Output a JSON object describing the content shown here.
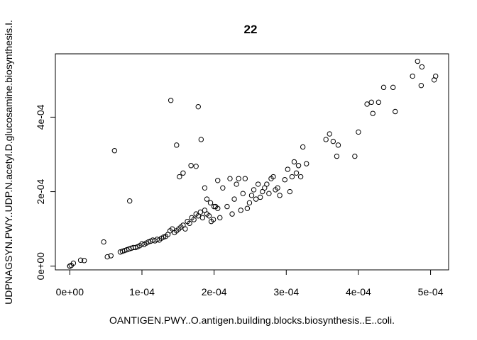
{
  "chart_data": {
    "type": "scatter",
    "title": "22",
    "xlabel": "OANTIGEN.PWY..O.antigen.building.blocks.biosynthesis..E..coli.",
    "ylabel": "UDPNAGSYN.PWY..UDP.N.acetyl.D.glucosamine.biosynthesis.I.",
    "xlim": [
      -2e-05,
      0.000525
    ],
    "ylim": [
      -1e-05,
      0.00057
    ],
    "grid": false,
    "legend": "none",
    "x_ticks": [
      {
        "value": 0,
        "label": "0e+00"
      },
      {
        "value": 0.0001,
        "label": "1e-04"
      },
      {
        "value": 0.0002,
        "label": "2e-04"
      },
      {
        "value": 0.0003,
        "label": "3e-04"
      },
      {
        "value": 0.0004,
        "label": "4e-04"
      },
      {
        "value": 0.0005,
        "label": "5e-04"
      }
    ],
    "y_ticks": [
      {
        "value": 0,
        "label": "0e+00"
      },
      {
        "value": 0.0002,
        "label": "2e-04"
      },
      {
        "value": 0.0004,
        "label": "4e-04"
      }
    ],
    "points": [
      [
        0.0,
        0.0
      ],
      [
        0.0,
        0.0
      ],
      [
        2e-06,
        2e-06
      ],
      [
        5e-06,
        8e-06
      ],
      [
        1.5e-05,
        1.6e-05
      ],
      [
        2e-05,
        1.5e-05
      ],
      [
        4.7e-05,
        6.5e-05
      ],
      [
        5.2e-05,
        2.5e-05
      ],
      [
        5.7e-05,
        2.8e-05
      ],
      [
        6.2e-05,
        0.00031
      ],
      [
        8.3e-05,
        0.000175
      ],
      [
        7e-05,
        3.8e-05
      ],
      [
        7.3e-05,
        4e-05
      ],
      [
        7.6e-05,
        4.2e-05
      ],
      [
        7.9e-05,
        4.4e-05
      ],
      [
        8.2e-05,
        4.6e-05
      ],
      [
        8.5e-05,
        4.8e-05
      ],
      [
        8.8e-05,
        5e-05
      ],
      [
        9.1e-05,
        5e-05
      ],
      [
        9.4e-05,
        5.2e-05
      ],
      [
        9.7e-05,
        5.5e-05
      ],
      [
        0.0001,
        6e-05
      ],
      [
        0.000103,
        5.8e-05
      ],
      [
        0.000106,
        6.2e-05
      ],
      [
        0.000109,
        6.5e-05
      ],
      [
        0.000112,
        6.7e-05
      ],
      [
        0.000115,
        7e-05
      ],
      [
        0.000118,
        6.8e-05
      ],
      [
        0.000121,
        7.2e-05
      ],
      [
        0.000124,
        7e-05
      ],
      [
        0.000127,
        7.5e-05
      ],
      [
        0.00013,
        7.8e-05
      ],
      [
        0.000133,
        8e-05
      ],
      [
        0.000136,
        8.5e-05
      ],
      [
        0.000139,
        9.5e-05
      ],
      [
        0.000142,
        0.0001
      ],
      [
        0.000145,
        9e-05
      ],
      [
        0.000148,
        9.5e-05
      ],
      [
        0.000151,
        0.0001
      ],
      [
        0.000154,
        0.000105
      ],
      [
        0.000157,
        0.00011
      ],
      [
        0.00016,
        0.0001
      ],
      [
        0.000163,
        0.00012
      ],
      [
        0.000166,
        0.000115
      ],
      [
        0.000169,
        0.00013
      ],
      [
        0.000172,
        0.000125
      ],
      [
        0.000175,
        0.00014
      ],
      [
        0.000178,
        0.000135
      ],
      [
        0.000181,
        0.000145
      ],
      [
        0.000184,
        0.00013
      ],
      [
        0.000187,
        0.00015
      ],
      [
        0.00019,
        0.00014
      ],
      [
        0.000193,
        0.000135
      ],
      [
        0.000196,
        0.00012
      ],
      [
        0.000199,
        0.000125
      ],
      [
        0.000202,
        0.00016
      ],
      [
        0.000205,
        0.000155
      ],
      [
        0.000208,
        0.00013
      ],
      [
        0.00014,
        0.000445
      ],
      [
        0.000148,
        0.000325
      ],
      [
        0.000152,
        0.00024
      ],
      [
        0.000157,
        0.00025
      ],
      [
        0.000168,
        0.00027
      ],
      [
        0.000175,
        0.000268
      ],
      [
        0.000178,
        0.000428
      ],
      [
        0.000182,
        0.00034
      ],
      [
        0.000187,
        0.00021
      ],
      [
        0.00019,
        0.00018
      ],
      [
        0.000195,
        0.00017
      ],
      [
        0.0002,
        0.00016
      ],
      [
        0.000205,
        0.00023
      ],
      [
        0.000212,
        0.00021
      ],
      [
        0.000218,
        0.00016
      ],
      [
        0.000222,
        0.000235
      ],
      [
        0.000225,
        0.00014
      ],
      [
        0.000228,
        0.00018
      ],
      [
        0.000231,
        0.00022
      ],
      [
        0.000234,
        0.000235
      ],
      [
        0.000237,
        0.00015
      ],
      [
        0.00024,
        0.000195
      ],
      [
        0.000243,
        0.000235
      ],
      [
        0.000246,
        0.000155
      ],
      [
        0.000249,
        0.00017
      ],
      [
        0.000252,
        0.00019
      ],
      [
        0.000255,
        0.000205
      ],
      [
        0.000258,
        0.00018
      ],
      [
        0.000261,
        0.00022
      ],
      [
        0.000264,
        0.000185
      ],
      [
        0.000267,
        0.0002
      ],
      [
        0.00027,
        0.00021
      ],
      [
        0.000273,
        0.00022
      ],
      [
        0.000276,
        0.000195
      ],
      [
        0.000279,
        0.000235
      ],
      [
        0.000282,
        0.00024
      ],
      [
        0.000285,
        0.000205
      ],
      [
        0.000288,
        0.00021
      ],
      [
        0.000291,
        0.00019
      ],
      [
        0.000298,
        0.000232
      ],
      [
        0.000302,
        0.00026
      ],
      [
        0.000305,
        0.0002
      ],
      [
        0.000308,
        0.00024
      ],
      [
        0.000311,
        0.00028
      ],
      [
        0.000314,
        0.00025
      ],
      [
        0.000317,
        0.00027
      ],
      [
        0.00032,
        0.00024
      ],
      [
        0.000323,
        0.00032
      ],
      [
        0.000328,
        0.000275
      ],
      [
        0.000355,
        0.00034
      ],
      [
        0.00036,
        0.000355
      ],
      [
        0.000365,
        0.000335
      ],
      [
        0.00037,
        0.000295
      ],
      [
        0.000372,
        0.000325
      ],
      [
        0.000395,
        0.000295
      ],
      [
        0.0004,
        0.00036
      ],
      [
        0.000412,
        0.000435
      ],
      [
        0.000418,
        0.00044
      ],
      [
        0.00042,
        0.00041
      ],
      [
        0.000428,
        0.00044
      ],
      [
        0.000435,
        0.00048
      ],
      [
        0.000448,
        0.00048
      ],
      [
        0.000451,
        0.000415
      ],
      [
        0.000475,
        0.00051
      ],
      [
        0.000482,
        0.00055
      ],
      [
        0.000487,
        0.000485
      ],
      [
        0.000488,
        0.000535
      ],
      [
        0.000505,
        0.0005
      ],
      [
        0.000507,
        0.00051
      ]
    ]
  }
}
